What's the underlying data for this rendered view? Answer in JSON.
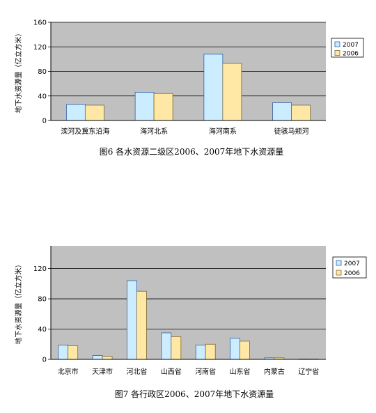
{
  "colors": {
    "plot_bg": "#c0c0c0",
    "grid": "#000000",
    "series_2007": "#ccecff",
    "series_2007_edge": "#2a5fa8",
    "series_2006": "#ffe8a6",
    "series_2006_edge": "#7a6a30"
  },
  "chart_data": [
    {
      "type": "bar",
      "title": "图6  各水资源二级区2006、2007年地下水资源量",
      "ylabel": "地下水资源量（亿立方米）",
      "xlabel": "",
      "categories": [
        "滦河及冀东沿海",
        "海河北系",
        "海河南系",
        "徒骇马颊河"
      ],
      "series": [
        {
          "name": "2007",
          "values": [
            26,
            46,
            108,
            29
          ]
        },
        {
          "name": "2006",
          "values": [
            25,
            44,
            93,
            25
          ]
        }
      ],
      "ylim": [
        0,
        160
      ],
      "yticks": [
        "0",
        "40",
        "80",
        "120",
        "160"
      ],
      "grid": true,
      "legend": "right"
    },
    {
      "type": "bar",
      "title": "图7  各行政区2006、2007年地下水资源量",
      "ylabel": "地下水资源量（亿立方米）",
      "xlabel": "",
      "categories": [
        "北京市",
        "天津市",
        "河北省",
        "山西省",
        "河南省",
        "山东省",
        "内蒙古",
        "辽宁省"
      ],
      "series": [
        {
          "name": "2007",
          "values": [
            19,
            5,
            104,
            35,
            19,
            28,
            2,
            0.5
          ]
        },
        {
          "name": "2006",
          "values": [
            18,
            4,
            90,
            30,
            20,
            24,
            2,
            0.5
          ]
        }
      ],
      "ylim": [
        0,
        150
      ],
      "yticks": [
        "0",
        "40",
        "80",
        "120"
      ],
      "grid": true,
      "legend": "right"
    }
  ]
}
